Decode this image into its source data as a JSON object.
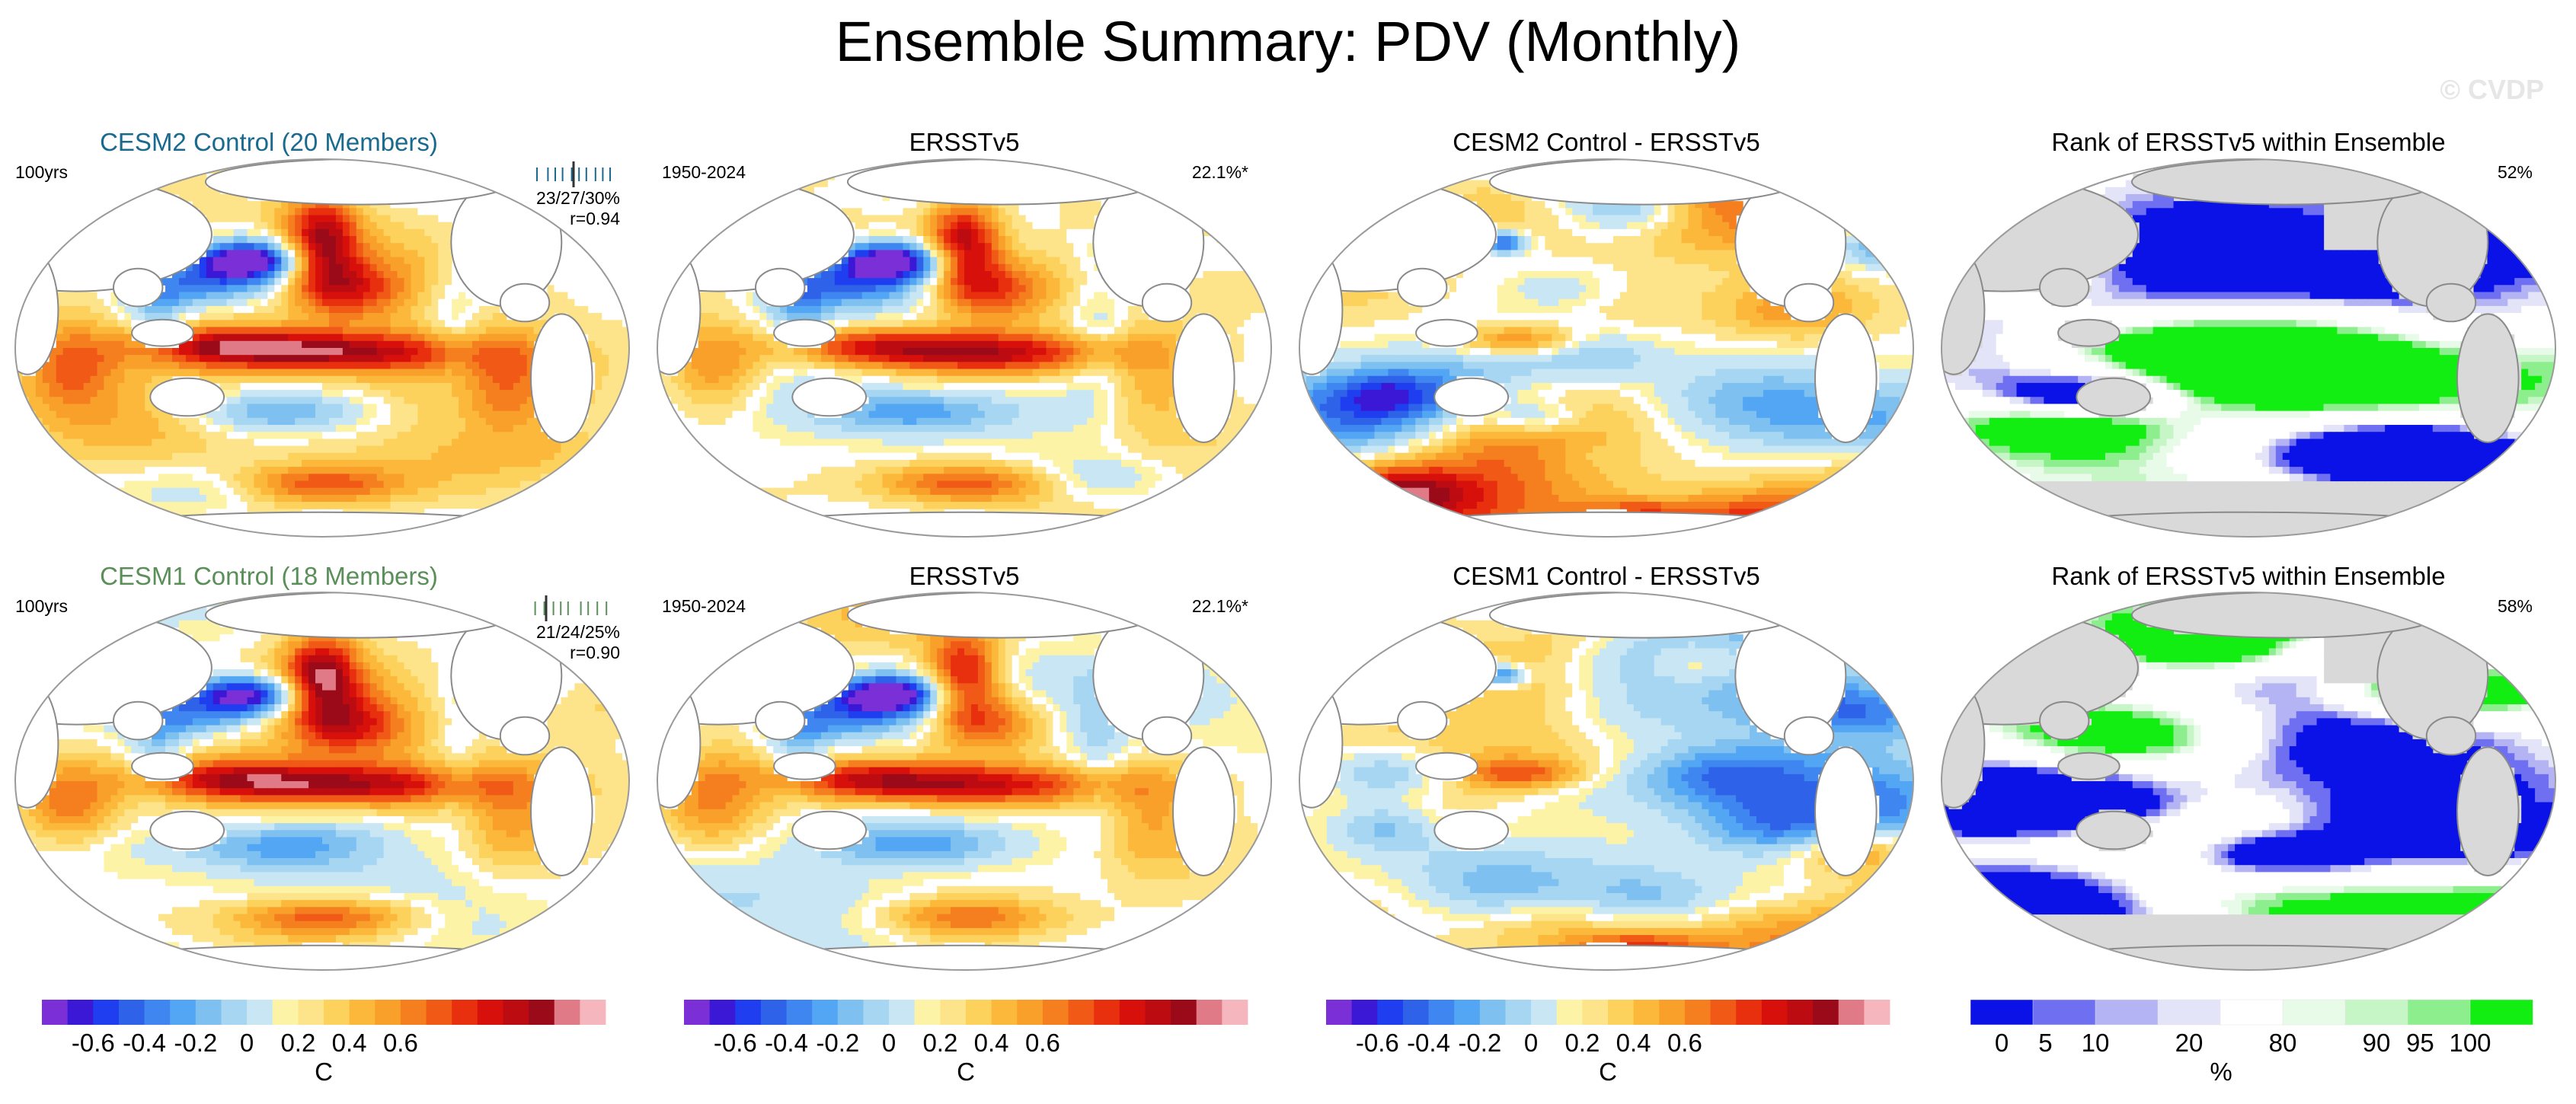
{
  "page": {
    "title": "Ensemble Summary: PDV (Monthly)",
    "watermark": "© CVDP"
  },
  "colors": {
    "member_row1": "#1a6a8f",
    "member_row2": "#5a8f5a",
    "ocean_mask": "#d9d9d9",
    "land": "#ffffff",
    "coast": "#8a8a8a"
  },
  "colorbars": {
    "sst": {
      "colors": [
        "#7b2fd6",
        "#3a18d6",
        "#1e3ef0",
        "#2e62e8",
        "#3f86f0",
        "#52a6f4",
        "#7ec0f0",
        "#a6d6f2",
        "#c9e6f4",
        "#fdf3a6",
        "#fde48a",
        "#fcd15c",
        "#fbb83a",
        "#f9a02a",
        "#f57e1e",
        "#f05a16",
        "#e8300f",
        "#d8100c",
        "#bd0b12",
        "#9b0a18",
        "#e07a86",
        "#f6b6bd"
      ],
      "labels": [
        "-0.6",
        "-0.4",
        "-0.2",
        "0",
        "0.2",
        "0.4",
        "0.6"
      ],
      "label_positions": [
        2,
        4,
        6,
        8,
        10,
        12,
        14
      ],
      "unit": "C"
    },
    "rank": {
      "colors": [
        "#0a12e8",
        "#6f6ff2",
        "#b4b4f4",
        "#e4e4f8",
        "#ffffff",
        "#e8fbe8",
        "#c6f5c6",
        "#8cee8c",
        "#12ee12"
      ],
      "labels": [
        "0",
        "5",
        "10",
        "20",
        "80",
        "90",
        "95",
        "100"
      ],
      "label_positions": [
        0.5,
        1.2,
        2,
        3.5,
        5,
        6.5,
        7.2,
        8
      ],
      "unit": "%"
    }
  },
  "chart_data": [
    {
      "type": "heatmap",
      "row": 0,
      "col": 0,
      "kind": "sst",
      "title": "CESM2 Control (20 Members)",
      "left_label": "100yrs",
      "stats": "23/27/30%",
      "corr": "r=0.94",
      "spread_ticks": [
        0.1,
        0.22,
        0.3,
        0.38,
        0.48,
        0.56,
        0.64,
        0.74,
        0.82,
        0.9
      ],
      "spread_ref": 0.5,
      "units": "C",
      "range": [
        -0.6,
        0.6
      ]
    },
    {
      "type": "heatmap",
      "row": 0,
      "col": 1,
      "kind": "sst",
      "title": "ERSSTv5",
      "left_label": "1950-2024",
      "right_label": "22.1%*",
      "units": "C",
      "range": [
        -0.6,
        0.6
      ]
    },
    {
      "type": "heatmap",
      "row": 0,
      "col": 2,
      "kind": "sst",
      "diff": true,
      "title": "CESM2 Control - ERSSTv5",
      "units": "C",
      "range": [
        -0.6,
        0.6
      ]
    },
    {
      "type": "heatmap",
      "row": 0,
      "col": 3,
      "kind": "rank",
      "title": "Rank of ERSSTv5 within Ensemble",
      "right_label": "52%",
      "units": "%",
      "range": [
        0,
        100
      ]
    },
    {
      "type": "heatmap",
      "row": 1,
      "col": 0,
      "kind": "sst",
      "title": "CESM1 Control (18 Members)",
      "left_label": "100yrs",
      "stats": "21/24/25%",
      "corr": "r=0.90",
      "spread_ticks": [
        0.08,
        0.18,
        0.28,
        0.36,
        0.44,
        0.58,
        0.66,
        0.76,
        0.86
      ],
      "spread_ref": 0.2,
      "units": "C",
      "range": [
        -0.6,
        0.6
      ]
    },
    {
      "type": "heatmap",
      "row": 1,
      "col": 1,
      "kind": "sst",
      "title": "ERSSTv5",
      "left_label": "1950-2024",
      "right_label": "22.1%*",
      "units": "C",
      "range": [
        -0.6,
        0.6
      ]
    },
    {
      "type": "heatmap",
      "row": 1,
      "col": 2,
      "kind": "sst",
      "diff": true,
      "title": "CESM1 Control - ERSSTv5",
      "units": "C",
      "range": [
        -0.6,
        0.6
      ]
    },
    {
      "type": "heatmap",
      "row": 1,
      "col": 3,
      "kind": "rank",
      "title": "Rank of ERSSTv5 within Ensemble",
      "right_label": "58%",
      "units": "%",
      "range": [
        0,
        100
      ]
    }
  ]
}
